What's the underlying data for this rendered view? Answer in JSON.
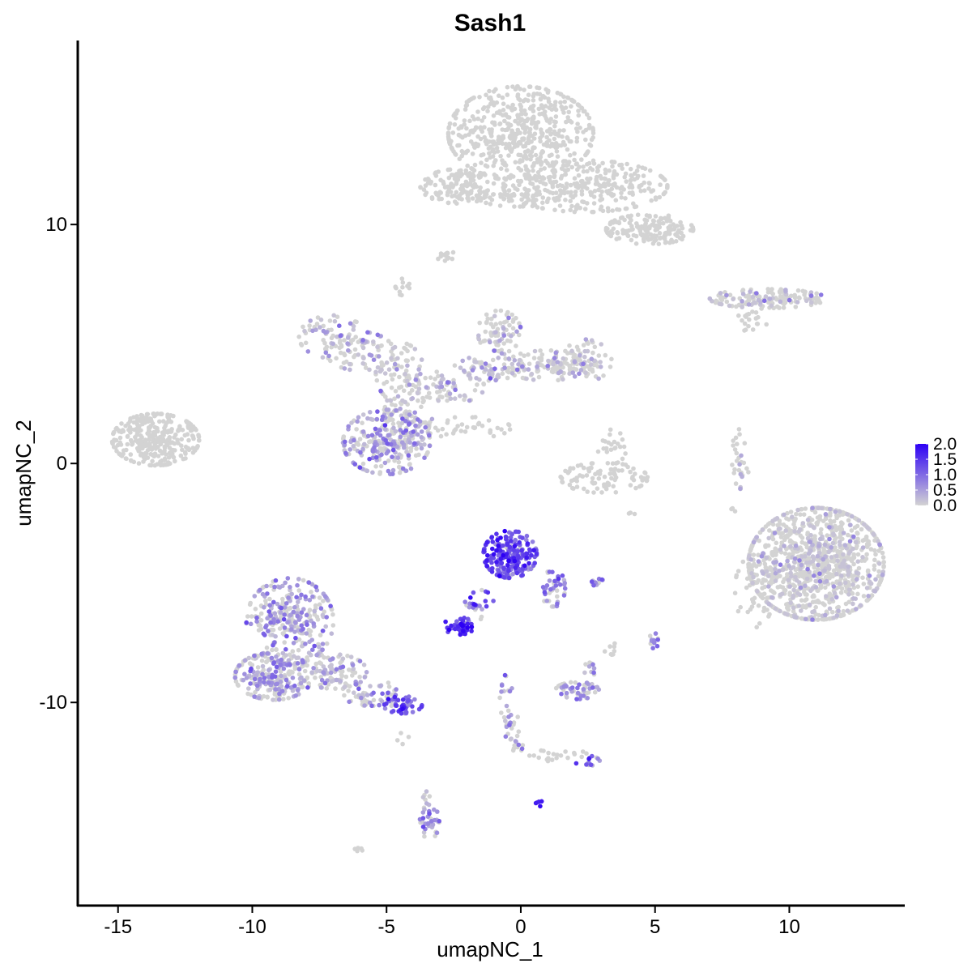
{
  "chart_data": {
    "type": "scatter",
    "title": "Sash1",
    "xlabel": "umapNC_1",
    "ylabel": "umapNC_2",
    "xlim": [
      -16.5,
      14.3
    ],
    "ylim": [
      -18.5,
      17.7
    ],
    "x_ticks": [
      -15,
      -10,
      -5,
      0,
      5,
      10
    ],
    "x_tick_labels": [
      "-15",
      "-10",
      "-5",
      "0",
      "5",
      "10"
    ],
    "y_ticks": [
      -10,
      0,
      10
    ],
    "y_tick_labels": [
      "-10",
      "0",
      "10"
    ],
    "grid": false,
    "color_scale": {
      "low": "#d3d3d3",
      "high": "#2d00f5",
      "min": 0.0,
      "max": 2.0,
      "ticks": [
        0.0,
        0.5,
        1.0,
        1.5,
        2.0
      ],
      "tick_labels": [
        "0.0",
        "0.5",
        "1.0",
        "1.5",
        "2.0"
      ],
      "placement": "right"
    },
    "clusters": [
      {
        "cx": 0.0,
        "cy": 13.8,
        "sx": 1.5,
        "sy": 1.1,
        "n": 550,
        "expr": 0.0
      },
      {
        "cx": 2.4,
        "cy": 11.6,
        "sx": 1.7,
        "sy": 0.6,
        "n": 300,
        "expr": 0.0
      },
      {
        "cx": 4.8,
        "cy": 9.8,
        "sx": 0.9,
        "sy": 0.35,
        "n": 170,
        "expr": 0.0
      },
      {
        "cx": -2.3,
        "cy": 11.6,
        "sx": 0.8,
        "sy": 0.4,
        "n": 130,
        "expr": 0.0
      },
      {
        "cx": -0.2,
        "cy": 11.2,
        "sx": 0.8,
        "sy": 0.25,
        "n": 60,
        "expr": 0.0
      },
      {
        "cx": -2.8,
        "cy": 8.7,
        "sx": 0.2,
        "sy": 0.12,
        "n": 15,
        "expr": 0.0
      },
      {
        "cx": -4.4,
        "cy": 7.4,
        "sx": 0.15,
        "sy": 0.2,
        "n": 12,
        "expr": 0.0
      },
      {
        "cx": 9.2,
        "cy": 6.9,
        "sx": 1.2,
        "sy": 0.22,
        "n": 150,
        "expr": 0.05
      },
      {
        "cx": 8.7,
        "cy": 6.0,
        "sx": 0.35,
        "sy": 0.3,
        "n": 20,
        "expr": 0.0
      },
      {
        "cx": -13.6,
        "cy": 1.0,
        "sx": 0.9,
        "sy": 0.6,
        "n": 320,
        "expr": 0.0
      },
      {
        "cx": -7.0,
        "cy": 5.3,
        "sx": 0.7,
        "sy": 0.5,
        "n": 70,
        "expr": 0.35
      },
      {
        "cx": -6.0,
        "cy": 4.7,
        "sx": 0.7,
        "sy": 0.45,
        "n": 70,
        "expr": 0.25
      },
      {
        "cx": -4.5,
        "cy": 3.8,
        "sx": 0.5,
        "sy": 0.7,
        "n": 70,
        "expr": 0.15
      },
      {
        "cx": -4.2,
        "cy": 2.0,
        "sx": 0.5,
        "sy": 0.7,
        "n": 70,
        "expr": 0.2
      },
      {
        "cx": -2.8,
        "cy": 3.2,
        "sx": 0.8,
        "sy": 0.4,
        "n": 70,
        "expr": 0.35
      },
      {
        "cx": -1.2,
        "cy": 4.1,
        "sx": 0.7,
        "sy": 0.35,
        "n": 60,
        "expr": 0.2
      },
      {
        "cx": -0.8,
        "cy": 5.5,
        "sx": 0.45,
        "sy": 0.5,
        "n": 70,
        "expr": 0.1
      },
      {
        "cx": 1.0,
        "cy": 4.1,
        "sx": 0.9,
        "sy": 0.35,
        "n": 110,
        "expr": 0.2
      },
      {
        "cx": 2.3,
        "cy": 4.3,
        "sx": 0.6,
        "sy": 0.5,
        "n": 70,
        "expr": 0.3
      },
      {
        "cx": -2.0,
        "cy": 1.5,
        "sx": 0.9,
        "sy": 0.25,
        "n": 40,
        "expr": 0.0
      },
      {
        "cx": -5.0,
        "cy": 0.9,
        "sx": 0.9,
        "sy": 0.75,
        "n": 280,
        "expr": 0.5
      },
      {
        "cx": 3.1,
        "cy": -0.6,
        "sx": 0.9,
        "sy": 0.35,
        "n": 90,
        "expr": 0.0
      },
      {
        "cx": 3.4,
        "cy": 0.7,
        "sx": 0.3,
        "sy": 0.4,
        "n": 25,
        "expr": 0.0
      },
      {
        "cx": 8.2,
        "cy": 0.2,
        "sx": 0.2,
        "sy": 0.7,
        "n": 30,
        "expr": 0.1
      },
      {
        "cx": 11.0,
        "cy": -4.2,
        "sx": 1.4,
        "sy": 1.3,
        "n": 1000,
        "expr": 0.03
      },
      {
        "cx": 8.7,
        "cy": -5.3,
        "sx": 0.4,
        "sy": 0.9,
        "n": 50,
        "expr": 0.0
      },
      {
        "cx": -0.4,
        "cy": -3.8,
        "sx": 0.55,
        "sy": 0.55,
        "n": 230,
        "expr": 1.25
      },
      {
        "cx": 1.2,
        "cy": -5.2,
        "sx": 0.25,
        "sy": 0.45,
        "n": 40,
        "expr": 0.8
      },
      {
        "cx": -1.5,
        "cy": -5.5,
        "sx": 0.3,
        "sy": 0.3,
        "n": 12,
        "expr": 1.2
      },
      {
        "cx": -1.8,
        "cy": -6.2,
        "sx": 0.2,
        "sy": 0.35,
        "n": 15,
        "expr": 1.0
      },
      {
        "cx": -2.3,
        "cy": -6.8,
        "sx": 0.32,
        "sy": 0.2,
        "n": 50,
        "expr": 1.5
      },
      {
        "cx": 2.8,
        "cy": -5.0,
        "sx": 0.2,
        "sy": 0.1,
        "n": 12,
        "expr": 0.7
      },
      {
        "cx": 5.0,
        "cy": -7.4,
        "sx": 0.12,
        "sy": 0.2,
        "n": 12,
        "expr": 0.6
      },
      {
        "cx": 3.3,
        "cy": -7.6,
        "sx": 0.15,
        "sy": 0.25,
        "n": 8,
        "expr": 0.0
      },
      {
        "cx": -8.6,
        "cy": -6.6,
        "sx": 0.9,
        "sy": 1.0,
        "n": 320,
        "expr": 0.55
      },
      {
        "cx": -9.2,
        "cy": -8.9,
        "sx": 0.8,
        "sy": 0.55,
        "n": 220,
        "expr": 0.5
      },
      {
        "cx": -7.0,
        "cy": -8.7,
        "sx": 0.7,
        "sy": 0.4,
        "n": 100,
        "expr": 0.4
      },
      {
        "cx": -5.6,
        "cy": -9.6,
        "sx": 0.6,
        "sy": 0.3,
        "n": 60,
        "expr": 0.5
      },
      {
        "cx": -4.4,
        "cy": -10.1,
        "sx": 0.4,
        "sy": 0.2,
        "n": 50,
        "expr": 1.2
      },
      {
        "cx": 2.1,
        "cy": -9.5,
        "sx": 0.45,
        "sy": 0.2,
        "n": 50,
        "expr": 0.6
      },
      {
        "cx": 2.6,
        "cy": -8.6,
        "sx": 0.15,
        "sy": 0.15,
        "n": 10,
        "expr": 0.3
      },
      {
        "cx": -0.6,
        "cy": -9.4,
        "sx": 0.15,
        "sy": 0.3,
        "n": 10,
        "expr": 0.6
      },
      {
        "cx": -0.4,
        "cy": -10.8,
        "sx": 0.2,
        "sy": 0.5,
        "n": 20,
        "expr": 0.6
      },
      {
        "cx": -0.2,
        "cy": -11.8,
        "sx": 0.15,
        "sy": 0.2,
        "n": 12,
        "expr": 0.5
      },
      {
        "cx": 1.4,
        "cy": -12.2,
        "sx": 0.6,
        "sy": 0.15,
        "n": 20,
        "expr": 0.0
      },
      {
        "cx": 2.5,
        "cy": -12.5,
        "sx": 0.25,
        "sy": 0.15,
        "n": 15,
        "expr": 0.8
      },
      {
        "cx": 0.7,
        "cy": -14.2,
        "sx": 0.08,
        "sy": 0.08,
        "n": 5,
        "expr": 1.6
      },
      {
        "cx": -3.4,
        "cy": -15.0,
        "sx": 0.2,
        "sy": 0.4,
        "n": 40,
        "expr": 0.6
      },
      {
        "cx": -3.5,
        "cy": -14.0,
        "sx": 0.08,
        "sy": 0.2,
        "n": 6,
        "expr": 0.3
      },
      {
        "cx": -6.0,
        "cy": -16.1,
        "sx": 0.1,
        "sy": 0.08,
        "n": 5,
        "expr": 0.0
      },
      {
        "cx": -4.2,
        "cy": -11.5,
        "sx": 0.25,
        "sy": 0.15,
        "n": 4,
        "expr": 0.0
      },
      {
        "cx": 7.9,
        "cy": -2.0,
        "sx": 0.1,
        "sy": 0.1,
        "n": 3,
        "expr": 0.0
      },
      {
        "cx": 4.1,
        "cy": -2.0,
        "sx": 0.1,
        "sy": 0.1,
        "n": 3,
        "expr": 0.0
      }
    ]
  }
}
